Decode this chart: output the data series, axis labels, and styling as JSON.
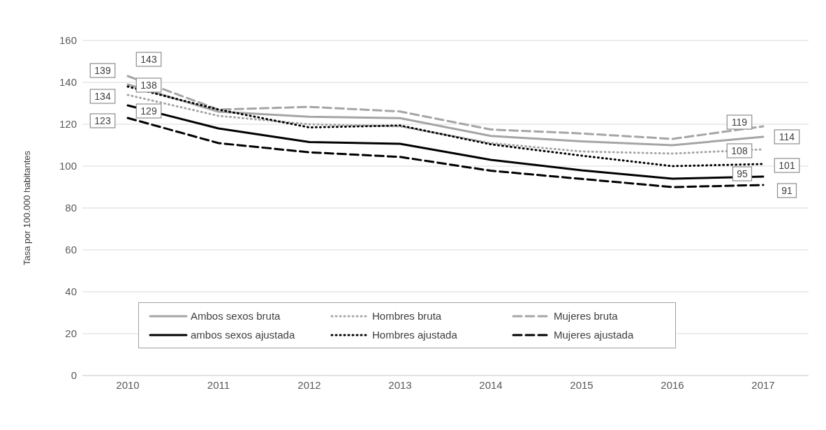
{
  "chart_data": {
    "type": "line",
    "ylabel": "Tasa por 100.000 habitantes",
    "categories": [
      "2010",
      "2011",
      "2012",
      "2013",
      "2014",
      "2015",
      "2016",
      "2017"
    ],
    "ylim": [
      0,
      160
    ],
    "yticks": [
      0,
      20,
      40,
      60,
      80,
      100,
      120,
      140,
      160
    ],
    "grid": "y",
    "legend": "bottom",
    "marker": "none",
    "series": [
      {
        "name": "Ambos sexos bruta",
        "color": "#a5a5a5",
        "line_style": "solid",
        "values": [
          139,
          126,
          123.6,
          122.9,
          114.4,
          111.8,
          110,
          114
        ],
        "value_labels": [
          "139",
          null,
          null,
          null,
          null,
          null,
          null,
          "114"
        ]
      },
      {
        "name": "Hombres bruta",
        "color": "#a5a5a5",
        "line_style": "dotted",
        "values": [
          134,
          124,
          120,
          119,
          111,
          107,
          106,
          108
        ],
        "value_labels": [
          "134",
          null,
          null,
          null,
          null,
          null,
          null,
          "108"
        ]
      },
      {
        "name": "Mujeres bruta",
        "color": "#a5a5a5",
        "line_style": "dashed",
        "values": [
          143,
          127,
          128.3,
          126.1,
          117.5,
          115.6,
          113,
          119
        ],
        "value_labels": [
          "143",
          null,
          null,
          null,
          null,
          null,
          null,
          "119"
        ]
      },
      {
        "name": "ambos sexos ajustada",
        "color": "#000000",
        "line_style": "solid",
        "values": [
          129,
          118,
          111.5,
          110.7,
          103,
          98,
          94,
          95
        ],
        "value_labels": [
          "129",
          null,
          null,
          null,
          null,
          null,
          null,
          "95"
        ]
      },
      {
        "name": "Hombres ajustada",
        "color": "#000000",
        "line_style": "dotted",
        "values": [
          138,
          127,
          118.5,
          119.4,
          110.4,
          105,
          100,
          101
        ],
        "value_labels": [
          "138",
          null,
          null,
          null,
          null,
          null,
          null,
          "101"
        ]
      },
      {
        "name": "Mujeres ajustada",
        "color": "#000000",
        "line_style": "dashed",
        "values": [
          123,
          111,
          106.6,
          104.4,
          97.8,
          93.9,
          90,
          91
        ],
        "value_labels": [
          "123",
          null,
          null,
          null,
          null,
          null,
          null,
          "91"
        ]
      }
    ]
  }
}
